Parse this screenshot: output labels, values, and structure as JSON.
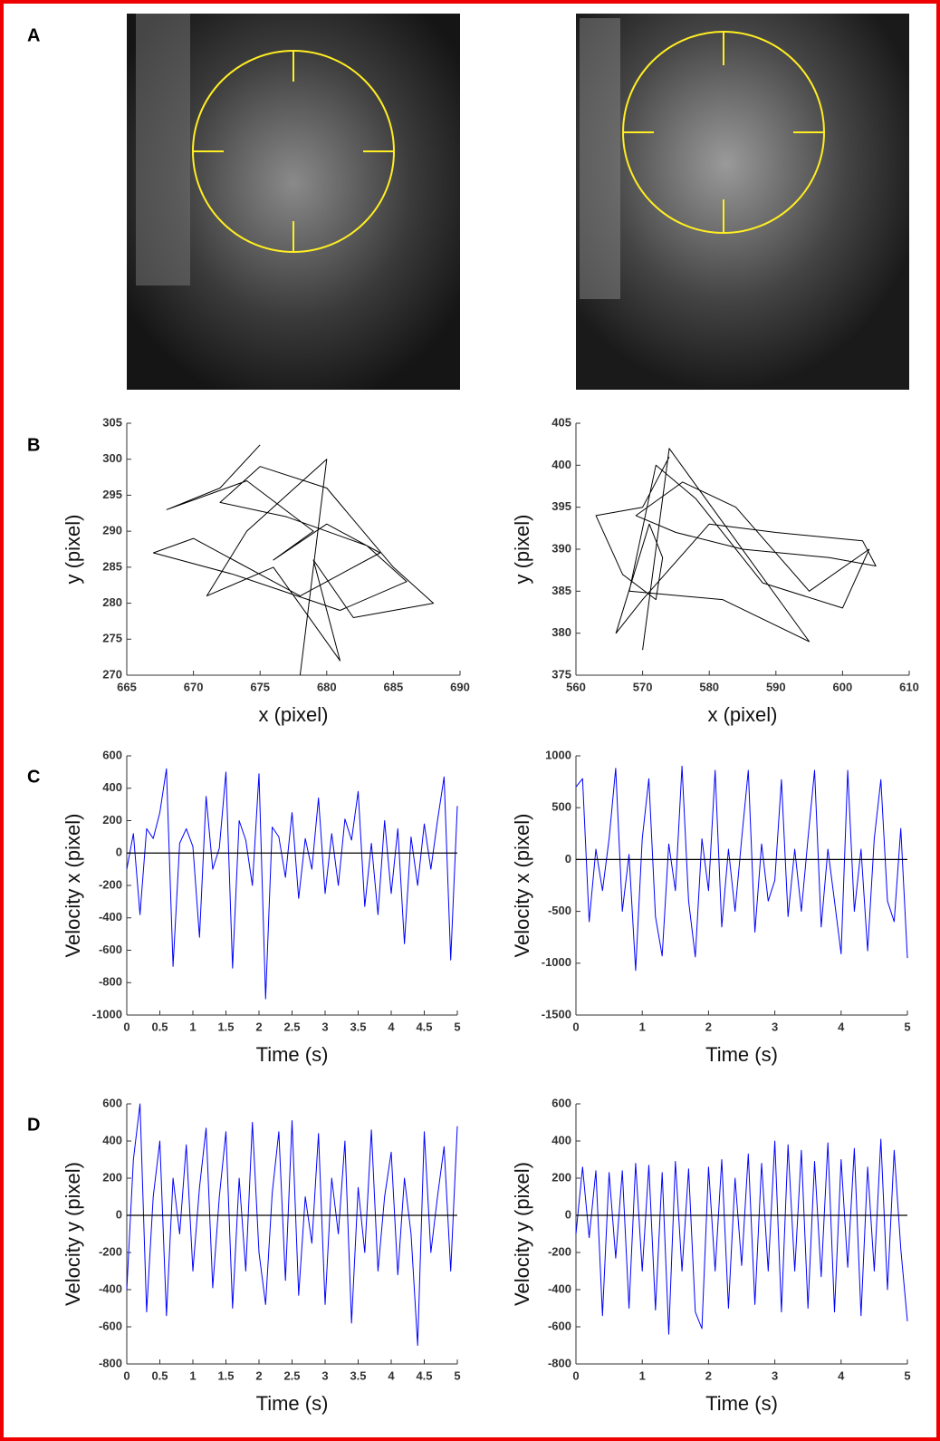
{
  "panels": [
    "A",
    "B",
    "C",
    "D"
  ],
  "chart_data": [
    {
      "type": "line",
      "xlabel": "x (pixel)",
      "ylabel": "y (pixel)",
      "color": "#000000",
      "x": [
        675,
        672,
        668,
        674,
        679,
        676,
        680,
        684,
        678,
        670,
        667,
        673,
        681,
        686,
        683,
        677,
        672,
        675,
        680,
        685,
        688,
        682,
        679,
        681,
        676,
        671,
        674,
        677,
        680,
        678
      ],
      "values": [
        302,
        296,
        293,
        297,
        290,
        286,
        291,
        287,
        281,
        289,
        287,
        284,
        279,
        283,
        288,
        292,
        294,
        299,
        296,
        285,
        280,
        278,
        286,
        272,
        285,
        281,
        290,
        295,
        300,
        270
      ],
      "xlim": [
        665,
        690
      ],
      "xticks": [
        665,
        670,
        675,
        680,
        685,
        690
      ],
      "ylim": [
        270,
        305
      ],
      "yticks": [
        270,
        275,
        280,
        285,
        290,
        295,
        300,
        305
      ],
      "zero_line": false
    },
    {
      "type": "line",
      "xlabel": "x (pixel)",
      "ylabel": "y (pixel)",
      "color": "#000000",
      "x": [
        574,
        570,
        563,
        567,
        572,
        573,
        571,
        566,
        570,
        580,
        590,
        603,
        605,
        598,
        585,
        575,
        569,
        576,
        584,
        595,
        604,
        600,
        588,
        578,
        572,
        568,
        582,
        595,
        574,
        570
      ],
      "values": [
        401,
        395,
        394,
        387,
        384,
        389,
        393,
        380,
        384,
        393,
        392,
        391,
        388,
        389,
        390,
        392,
        394,
        398,
        395,
        385,
        390,
        383,
        386,
        396,
        400,
        385,
        384,
        379,
        402,
        378
      ],
      "xlim": [
        560,
        610
      ],
      "xticks": [
        560,
        570,
        580,
        590,
        600,
        610
      ],
      "ylim": [
        375,
        405
      ],
      "yticks": [
        375,
        380,
        385,
        390,
        395,
        400,
        405
      ],
      "zero_line": false
    },
    {
      "type": "line",
      "xlabel": "Time (s)",
      "ylabel": "Velocity x (pixel)",
      "color": "#0000ff",
      "x": [
        0,
        0.1,
        0.2,
        0.3,
        0.4,
        0.5,
        0.6,
        0.7,
        0.8,
        0.9,
        1,
        1.1,
        1.2,
        1.3,
        1.4,
        1.5,
        1.6,
        1.7,
        1.8,
        1.9,
        2,
        2.1,
        2.2,
        2.3,
        2.4,
        2.5,
        2.6,
        2.7,
        2.8,
        2.9,
        3,
        3.1,
        3.2,
        3.3,
        3.4,
        3.5,
        3.6,
        3.7,
        3.8,
        3.9,
        4,
        4.1,
        4.2,
        4.3,
        4.4,
        4.5,
        4.6,
        4.7,
        4.8,
        4.9,
        5
      ],
      "values": [
        -100,
        120,
        -380,
        150,
        90,
        250,
        520,
        -700,
        60,
        150,
        40,
        -520,
        350,
        -100,
        30,
        500,
        -710,
        200,
        80,
        -200,
        490,
        -900,
        160,
        100,
        -150,
        250,
        -280,
        90,
        -100,
        340,
        -250,
        120,
        -200,
        210,
        80,
        380,
        -330,
        60,
        -380,
        200,
        -250,
        150,
        -560,
        100,
        -200,
        180,
        -100,
        200,
        470,
        -660,
        290
      ],
      "xlim": [
        0,
        5
      ],
      "xticks": [
        0,
        0.5,
        1,
        1.5,
        2,
        2.5,
        3,
        3.5,
        4,
        4.5,
        5
      ],
      "ylim": [
        -1000,
        600
      ],
      "yticks": [
        -1000,
        -800,
        -600,
        -400,
        -200,
        0,
        200,
        400,
        600
      ],
      "zero_line": true
    },
    {
      "type": "line",
      "xlabel": "Time (s)",
      "ylabel": "Velocity x (pixel)",
      "color": "#0000ff",
      "x": [
        0,
        0.1,
        0.2,
        0.3,
        0.4,
        0.5,
        0.6,
        0.7,
        0.8,
        0.9,
        1,
        1.1,
        1.2,
        1.3,
        1.4,
        1.5,
        1.6,
        1.7,
        1.8,
        1.9,
        2,
        2.1,
        2.2,
        2.3,
        2.4,
        2.5,
        2.6,
        2.7,
        2.8,
        2.9,
        3,
        3.1,
        3.2,
        3.3,
        3.4,
        3.5,
        3.6,
        3.7,
        3.8,
        3.9,
        4,
        4.1,
        4.2,
        4.3,
        4.4,
        4.5,
        4.6,
        4.7,
        4.8,
        4.9,
        5
      ],
      "values": [
        700,
        780,
        -600,
        100,
        -300,
        200,
        880,
        -500,
        50,
        -1070,
        200,
        780,
        -550,
        -930,
        150,
        -300,
        900,
        -400,
        -940,
        200,
        -300,
        860,
        -650,
        100,
        -500,
        200,
        860,
        -700,
        150,
        -400,
        -200,
        770,
        -550,
        100,
        -500,
        200,
        860,
        -650,
        100,
        -400,
        -910,
        860,
        -500,
        100,
        -880,
        200,
        770,
        -400,
        -600,
        300,
        -950
      ],
      "xlim": [
        0,
        5
      ],
      "xticks": [
        0,
        1,
        2,
        3,
        4,
        5
      ],
      "ylim": [
        -1500,
        1000
      ],
      "yticks": [
        -1500,
        -1000,
        -500,
        0,
        500,
        1000
      ],
      "zero_line": true
    },
    {
      "type": "line",
      "xlabel": "Time (s)",
      "ylabel": "Velocity y (pixel)",
      "color": "#0000ff",
      "x": [
        0,
        0.1,
        0.2,
        0.3,
        0.4,
        0.5,
        0.6,
        0.7,
        0.8,
        0.9,
        1,
        1.1,
        1.2,
        1.3,
        1.4,
        1.5,
        1.6,
        1.7,
        1.8,
        1.9,
        2,
        2.1,
        2.2,
        2.3,
        2.4,
        2.5,
        2.6,
        2.7,
        2.8,
        2.9,
        3,
        3.1,
        3.2,
        3.3,
        3.4,
        3.5,
        3.6,
        3.7,
        3.8,
        3.9,
        4,
        4.1,
        4.2,
        4.3,
        4.4,
        4.5,
        4.6,
        4.7,
        4.8,
        4.9,
        5
      ],
      "values": [
        -400,
        300,
        600,
        -520,
        100,
        400,
        -540,
        200,
        -100,
        380,
        -300,
        150,
        470,
        -390,
        100,
        450,
        -500,
        200,
        -300,
        500,
        -200,
        -480,
        120,
        450,
        -350,
        510,
        -430,
        100,
        -150,
        440,
        -480,
        200,
        -100,
        400,
        -580,
        150,
        -200,
        460,
        -300,
        100,
        340,
        -320,
        200,
        -100,
        -700,
        450,
        -200,
        100,
        370,
        -300,
        480
      ],
      "xlim": [
        0,
        5
      ],
      "xticks": [
        0,
        0.5,
        1,
        1.5,
        2,
        2.5,
        3,
        3.5,
        4,
        4.5,
        5
      ],
      "ylim": [
        -800,
        600
      ],
      "yticks": [
        -800,
        -600,
        -400,
        -200,
        0,
        200,
        400,
        600
      ],
      "zero_line": true
    },
    {
      "type": "line",
      "xlabel": "Time (s)",
      "ylabel": "Velocity y (pixel)",
      "color": "#0000ff",
      "x": [
        0,
        0.1,
        0.2,
        0.3,
        0.4,
        0.5,
        0.6,
        0.7,
        0.8,
        0.9,
        1,
        1.1,
        1.2,
        1.3,
        1.4,
        1.5,
        1.6,
        1.7,
        1.8,
        1.9,
        2,
        2.1,
        2.2,
        2.3,
        2.4,
        2.5,
        2.6,
        2.7,
        2.8,
        2.9,
        3,
        3.1,
        3.2,
        3.3,
        3.4,
        3.5,
        3.6,
        3.7,
        3.8,
        3.9,
        4,
        4.1,
        4.2,
        4.3,
        4.4,
        4.5,
        4.6,
        4.7,
        4.8,
        4.9,
        5
      ],
      "values": [
        -100,
        260,
        -120,
        240,
        -540,
        230,
        -230,
        240,
        -500,
        280,
        -300,
        270,
        -510,
        230,
        -640,
        290,
        -300,
        250,
        -520,
        -610,
        260,
        -300,
        300,
        -500,
        200,
        -270,
        330,
        -480,
        280,
        -300,
        400,
        -520,
        380,
        -300,
        350,
        -500,
        290,
        -330,
        390,
        -520,
        300,
        -280,
        360,
        -540,
        260,
        -300,
        410,
        -400,
        350,
        -180,
        -570
      ],
      "xlim": [
        0,
        5
      ],
      "xticks": [
        0,
        1,
        2,
        3,
        4,
        5
      ],
      "ylim": [
        -800,
        600
      ],
      "yticks": [
        -800,
        -600,
        -400,
        -200,
        0,
        200,
        400,
        600
      ],
      "zero_line": true
    }
  ]
}
